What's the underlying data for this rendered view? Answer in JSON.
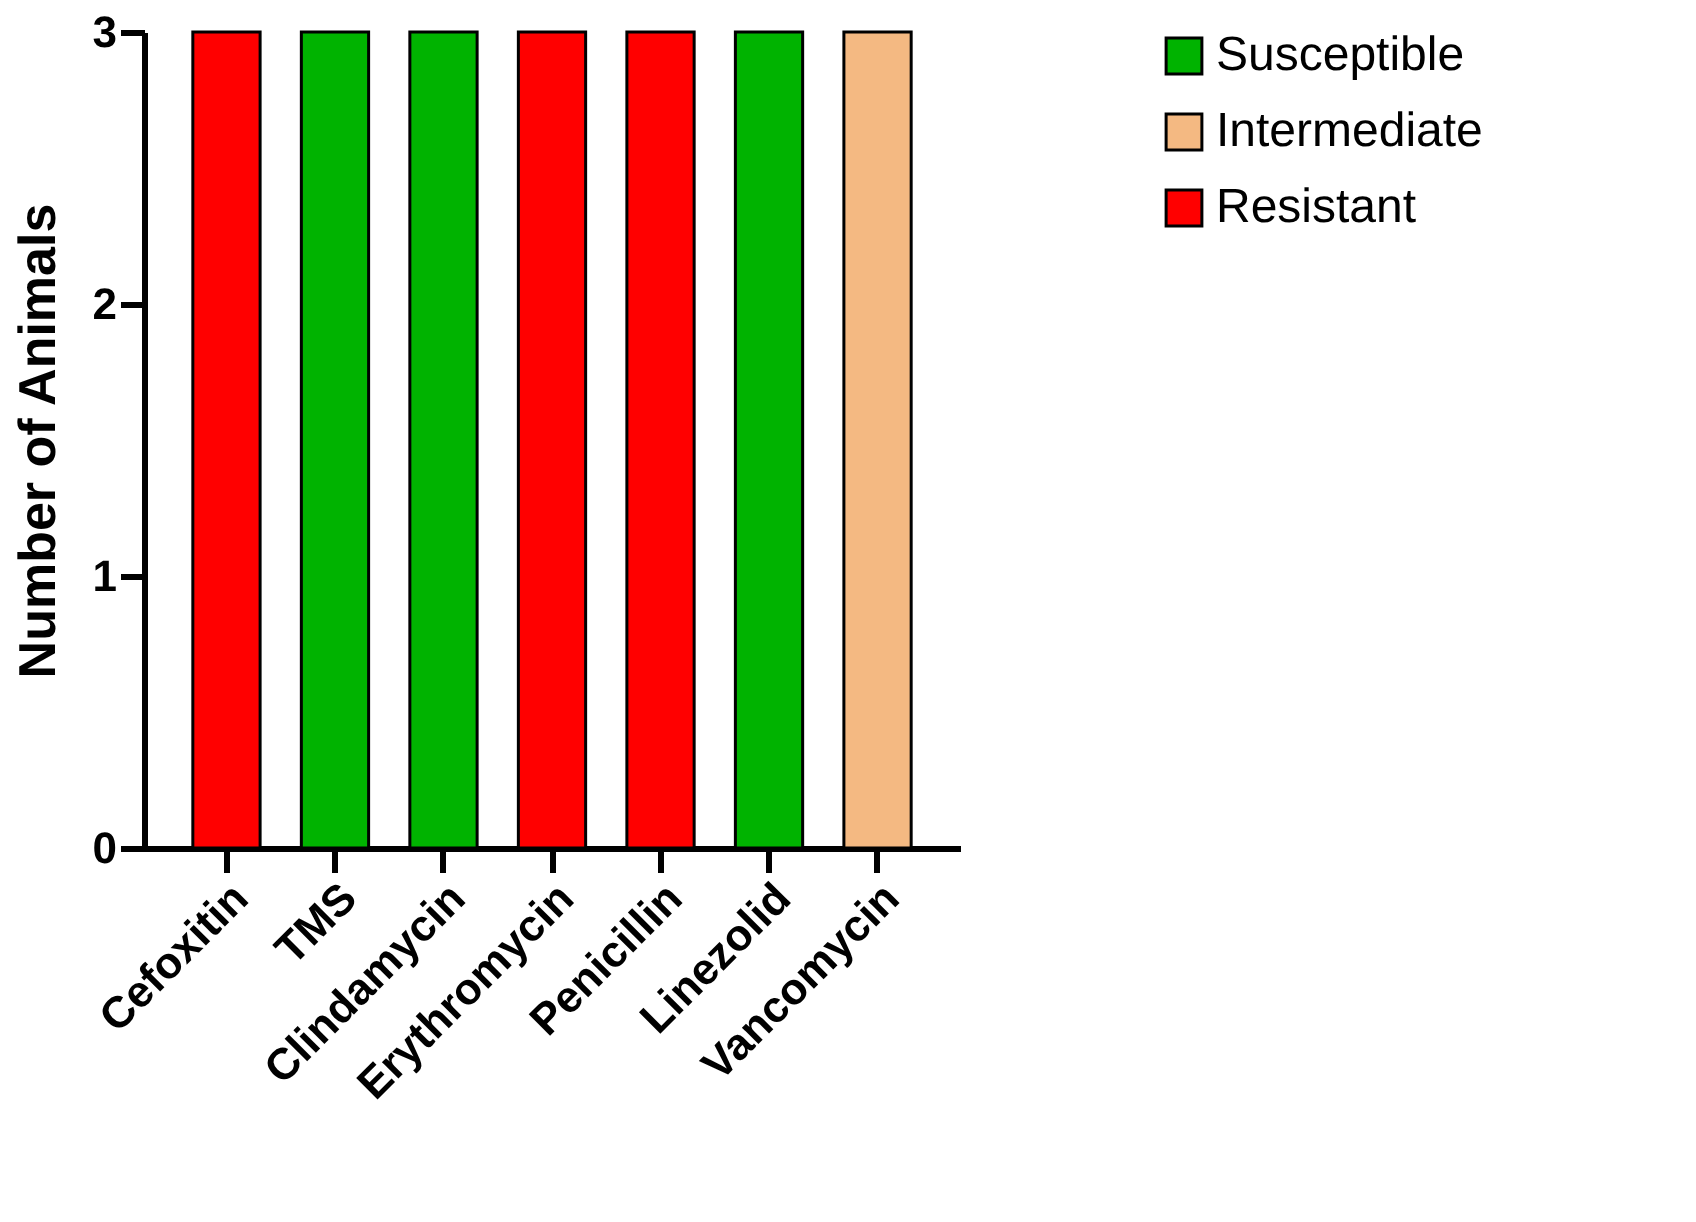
{
  "chart_data": {
    "type": "bar",
    "ylabel": "Number of Animals",
    "categories": [
      "Cefoxitin",
      "TMS",
      "Clindamycin",
      "Erythromycin",
      "Penicillin",
      "Linezolid",
      "Vancomycin"
    ],
    "series": [
      {
        "name": "Susceptible",
        "color": "#00b300",
        "values": [
          null,
          3,
          3,
          null,
          null,
          3,
          null
        ]
      },
      {
        "name": "Intermediate",
        "color": "#f4b982",
        "values": [
          null,
          null,
          null,
          null,
          null,
          null,
          3
        ]
      },
      {
        "name": "Resistant",
        "color": "#ff0000",
        "values": [
          3,
          null,
          null,
          3,
          3,
          null,
          null
        ]
      }
    ],
    "ylim": [
      0,
      3
    ],
    "yticks": [
      0,
      1,
      2,
      3
    ],
    "grid": false,
    "legend": "top right"
  }
}
